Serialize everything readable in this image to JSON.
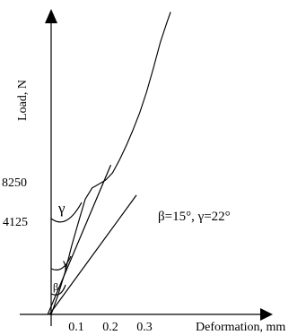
{
  "chart_data": {
    "type": "line",
    "xlabel": "Deformation, mm",
    "ylabel": "Load, N",
    "xlim": [
      0,
      0.35
    ],
    "ylim": [
      0,
      20000
    ],
    "x_ticks": [
      {
        "value": 0.1,
        "label": "0.1"
      },
      {
        "value": 0.2,
        "label": "0.2"
      },
      {
        "value": 0.3,
        "label": "0.3"
      }
    ],
    "y_ticks": [
      {
        "value": 4125,
        "label": "4125"
      },
      {
        "value": 8250,
        "label": "8250"
      }
    ],
    "series": [
      {
        "values": [
          {
            "x": 0.0,
            "y": 0
          },
          {
            "x": 0.02,
            "y": 1200
          },
          {
            "x": 0.04,
            "y": 2600
          },
          {
            "x": 0.06,
            "y": 4300
          },
          {
            "x": 0.08,
            "y": 5800
          },
          {
            "x": 0.1,
            "y": 7250
          },
          {
            "x": 0.12,
            "y": 7950
          },
          {
            "x": 0.14,
            "y": 8200
          },
          {
            "x": 0.16,
            "y": 8450
          },
          {
            "x": 0.18,
            "y": 8900
          },
          {
            "x": 0.2,
            "y": 9700
          },
          {
            "x": 0.22,
            "y": 10600
          },
          {
            "x": 0.24,
            "y": 11600
          },
          {
            "x": 0.26,
            "y": 12700
          },
          {
            "x": 0.28,
            "y": 14000
          },
          {
            "x": 0.3,
            "y": 15500
          },
          {
            "x": 0.32,
            "y": 17100
          },
          {
            "x": 0.34,
            "y": 18400
          },
          {
            "x": 0.35,
            "y": 19000
          }
        ]
      }
    ],
    "reference_lines": [
      {
        "from": {
          "x": -0.01,
          "y": 0
        },
        "to": {
          "x": 0.175,
          "y": 9400
        }
      },
      {
        "from": {
          "x": -0.005,
          "y": 0
        },
        "to": {
          "x": 0.25,
          "y": 7500
        }
      }
    ],
    "annotations": {
      "angle_text": "β=15°, γ=22°",
      "gamma_upper": "γ",
      "gamma_lower": "γ",
      "beta": "β"
    }
  }
}
